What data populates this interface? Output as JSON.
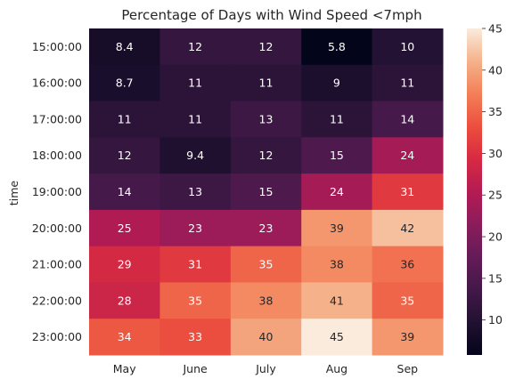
{
  "chart_data": {
    "type": "heatmap",
    "title": "Percentage of Days with Wind Speed <7mph",
    "xlabel": "",
    "ylabel": "time",
    "x_categories": [
      "May",
      "June",
      "July",
      "Aug",
      "Sep"
    ],
    "y_categories": [
      "15:00:00",
      "16:00:00",
      "17:00:00",
      "18:00:00",
      "19:00:00",
      "20:00:00",
      "21:00:00",
      "22:00:00",
      "23:00:00"
    ],
    "values": [
      [
        8.4,
        12,
        12,
        5.8,
        10
      ],
      [
        8.7,
        11,
        11,
        9,
        11
      ],
      [
        11,
        11,
        13,
        11,
        14
      ],
      [
        12,
        9.4,
        12,
        15,
        24
      ],
      [
        14,
        13,
        15,
        24,
        31
      ],
      [
        25,
        23,
        23,
        39,
        42
      ],
      [
        29,
        31,
        35,
        38,
        36
      ],
      [
        28,
        35,
        38,
        41,
        35
      ],
      [
        34,
        33,
        40,
        45,
        39
      ]
    ],
    "value_labels": [
      [
        "8.4",
        "12",
        "12",
        "5.8",
        "10"
      ],
      [
        "8.7",
        "11",
        "11",
        "9",
        "11"
      ],
      [
        "11",
        "11",
        "13",
        "11",
        "14"
      ],
      [
        "12",
        "9.4",
        "12",
        "15",
        "24"
      ],
      [
        "14",
        "13",
        "15",
        "24",
        "31"
      ],
      [
        "25",
        "23",
        "23",
        "39",
        "42"
      ],
      [
        "29",
        "31",
        "35",
        "38",
        "36"
      ],
      [
        "28",
        "35",
        "38",
        "41",
        "35"
      ],
      [
        "34",
        "33",
        "40",
        "45",
        "39"
      ]
    ],
    "colorscale": "rocket",
    "vmin": 5.8,
    "vmax": 45,
    "colorbar_ticks": [
      10,
      15,
      20,
      25,
      30,
      35,
      40,
      45
    ],
    "grid": false
  }
}
